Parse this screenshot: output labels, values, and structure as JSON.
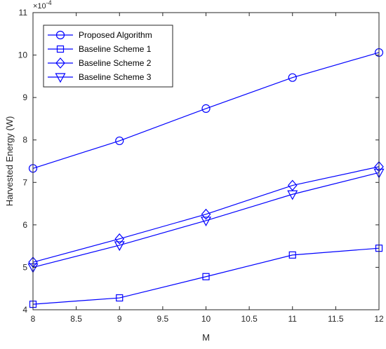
{
  "chart_data": {
    "type": "line",
    "xlabel": "M",
    "ylabel": "Harvested Energy (W)",
    "exponent_label": "×10",
    "exponent_power": "-4",
    "x": [
      8,
      9,
      10,
      11,
      12
    ],
    "xlim": [
      8,
      12
    ],
    "ylim": [
      4,
      11
    ],
    "xticks": [
      "8",
      "8.5",
      "9",
      "9.5",
      "10",
      "10.5",
      "11",
      "11.5",
      "12"
    ],
    "yticks": [
      "4",
      "5",
      "6",
      "7",
      "8",
      "9",
      "10",
      "11"
    ],
    "grid": false,
    "legend_position": "top-left",
    "line_color": "#0000ff",
    "series": [
      {
        "name": "Proposed Algorithm",
        "marker": "circle",
        "values": [
          7.33,
          7.98,
          8.74,
          9.47,
          10.06
        ]
      },
      {
        "name": "Baseline Scheme 1",
        "marker": "square",
        "values": [
          4.13,
          4.28,
          4.78,
          5.29,
          5.45
        ]
      },
      {
        "name": "Baseline Scheme 2",
        "marker": "diamond",
        "values": [
          5.12,
          5.67,
          6.25,
          6.93,
          7.37
        ]
      },
      {
        "name": "Baseline Scheme 3",
        "marker": "triangle-down",
        "values": [
          5.0,
          5.52,
          6.1,
          6.72,
          7.23
        ]
      }
    ]
  }
}
